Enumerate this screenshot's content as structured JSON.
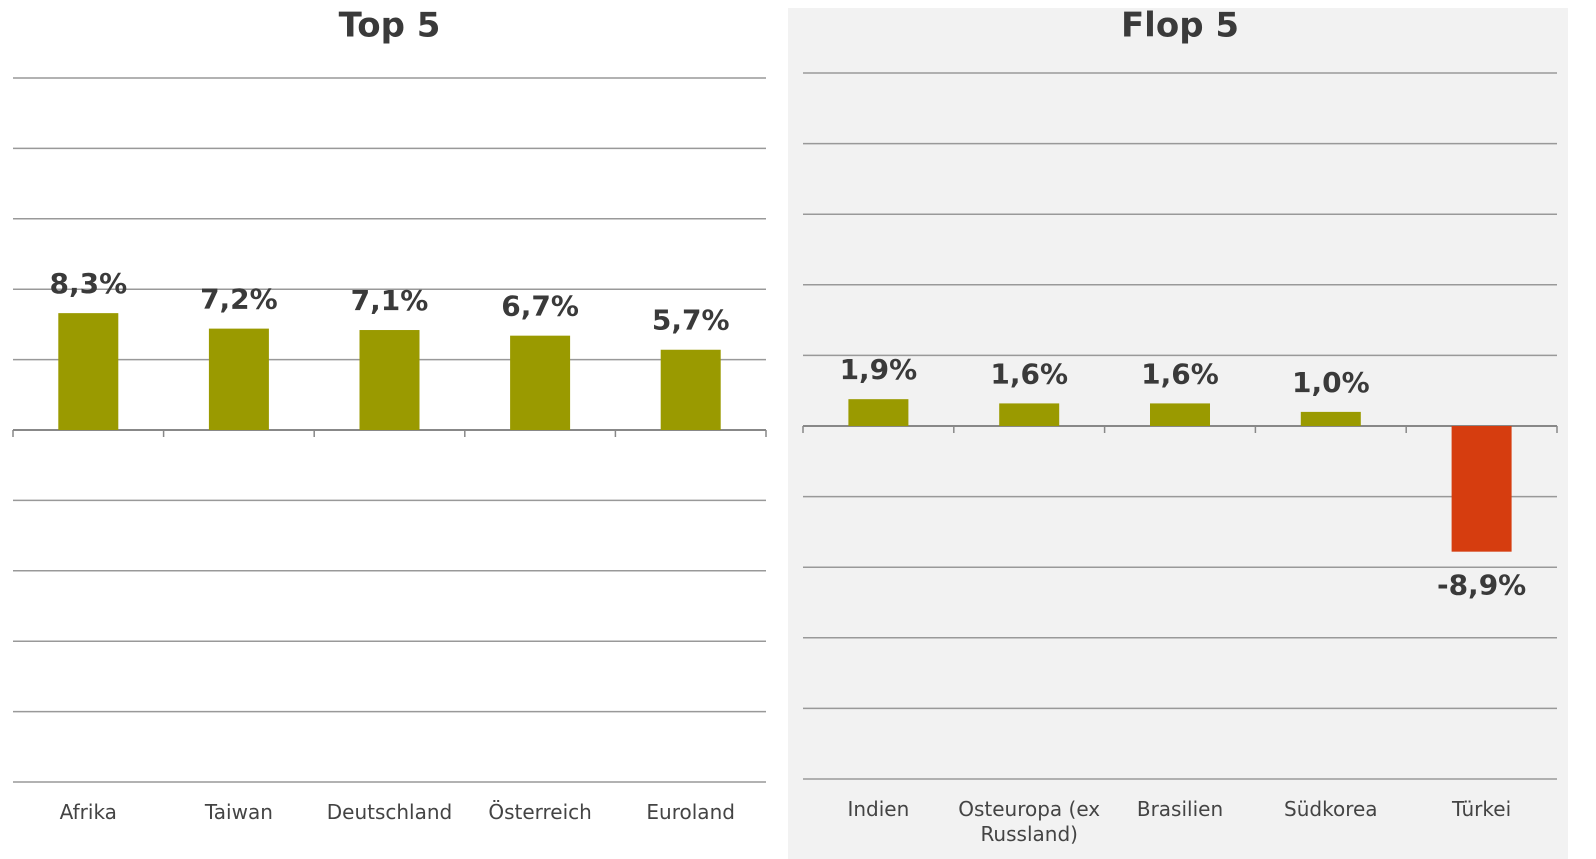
{
  "chart_data": [
    {
      "type": "bar",
      "title": "Top 5",
      "categories": [
        "Afrika",
        "Taiwan",
        "Deutschland",
        "Österreich",
        "Euroland"
      ],
      "values": [
        8.3,
        7.2,
        7.1,
        6.7,
        5.7
      ],
      "value_labels": [
        "8,3%",
        "7,2%",
        "7,1%",
        "6,7%",
        "5,7%"
      ],
      "colors": [
        "#9a9a00",
        "#9a9a00",
        "#9a9a00",
        "#9a9a00",
        "#9a9a00"
      ],
      "ylim": [
        -25,
        25
      ],
      "yticks": [
        -25,
        -20,
        -15,
        -10,
        -5,
        0,
        5,
        10,
        15,
        20,
        25
      ],
      "grid": true
    },
    {
      "type": "bar",
      "title": "Flop 5",
      "categories": [
        "Indien",
        "Osteuropa (ex Russland)",
        "Brasilien",
        "Südkorea",
        "Türkei"
      ],
      "values": [
        1.9,
        1.6,
        1.6,
        1.0,
        -8.9
      ],
      "value_labels": [
        "1,9%",
        "1,6%",
        "1,6%",
        "1,0%",
        "-8,9%"
      ],
      "colors": [
        "#9a9a00",
        "#9a9a00",
        "#9a9a00",
        "#9a9a00",
        "#d63d0f"
      ],
      "ylim": [
        -25,
        25
      ],
      "yticks": [
        -25,
        -20,
        -15,
        -10,
        -5,
        0,
        5,
        10,
        15,
        20,
        25
      ],
      "grid": true
    }
  ]
}
